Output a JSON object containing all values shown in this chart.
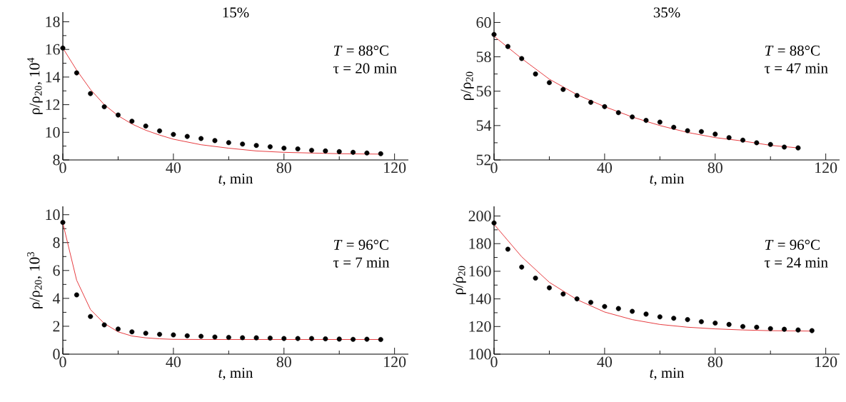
{
  "chart_data": [
    {
      "type": "scatter",
      "title": "15%",
      "xlabel": "*t*, min",
      "ylabel": "ρ/ρ$_{20}$, 10$^{4}$",
      "xlim": [
        0,
        125
      ],
      "ylim": [
        8,
        18.7
      ],
      "xticks": [
        0,
        40,
        80,
        120
      ],
      "yticks": [
        8,
        10,
        12,
        14,
        16,
        18
      ],
      "annotations": [
        "*T* = 88°C",
        "τ = 20 min"
      ],
      "series": [
        {
          "type": "scatter",
          "marker": "circle",
          "color": "#000000",
          "x": [
            0,
            5,
            10,
            15,
            20,
            25,
            30,
            35,
            40,
            45,
            50,
            55,
            60,
            65,
            70,
            75,
            80,
            85,
            90,
            95,
            100,
            105,
            110,
            115
          ],
          "values": [
            16.1,
            14.3,
            12.8,
            11.85,
            11.25,
            10.8,
            10.45,
            10.1,
            9.85,
            9.7,
            9.55,
            9.4,
            9.25,
            9.15,
            9.05,
            8.95,
            8.85,
            8.8,
            8.7,
            8.65,
            8.6,
            8.55,
            8.5,
            8.45
          ]
        },
        {
          "type": "line",
          "color": "#e3262a",
          "x": [
            0,
            5,
            10,
            15,
            20,
            25,
            30,
            35,
            40,
            50,
            60,
            70,
            80,
            90,
            100,
            115
          ],
          "values": [
            16.1,
            14.5,
            13.1,
            12.0,
            11.2,
            10.6,
            10.15,
            9.8,
            9.5,
            9.1,
            8.85,
            8.65,
            8.55,
            8.5,
            8.45,
            8.42
          ]
        }
      ]
    },
    {
      "type": "scatter",
      "title": "35%",
      "xlabel": "*t*, min",
      "ylabel": "ρ/ρ$_{20}$",
      "xlim": [
        0,
        125
      ],
      "ylim": [
        52,
        60.6
      ],
      "xticks": [
        0,
        40,
        80,
        120
      ],
      "yticks": [
        52,
        54,
        56,
        58,
        60
      ],
      "annotations": [
        "*T* = 88°C",
        "τ = 47 min"
      ],
      "series": [
        {
          "type": "scatter",
          "marker": "circle",
          "color": "#000000",
          "x": [
            0,
            5,
            10,
            15,
            20,
            25,
            30,
            35,
            40,
            45,
            50,
            55,
            60,
            65,
            70,
            75,
            80,
            85,
            90,
            95,
            100,
            105,
            110
          ],
          "values": [
            59.3,
            58.6,
            57.9,
            57.0,
            56.5,
            56.1,
            55.75,
            55.35,
            55.1,
            54.75,
            54.5,
            54.3,
            54.2,
            53.9,
            53.7,
            53.65,
            53.5,
            53.3,
            53.15,
            53.0,
            52.9,
            52.75,
            52.7
          ]
        },
        {
          "type": "line",
          "color": "#e3262a",
          "x": [
            0,
            10,
            20,
            30,
            40,
            50,
            60,
            70,
            80,
            90,
            100,
            110
          ],
          "values": [
            59.2,
            57.9,
            56.7,
            55.8,
            55.1,
            54.5,
            54.0,
            53.6,
            53.3,
            53.1,
            52.85,
            52.7
          ]
        }
      ]
    },
    {
      "type": "scatter",
      "xlabel": "*t*, min",
      "ylabel": "ρ/ρ$_{20}$, 10$^{3}$",
      "xlim": [
        0,
        125
      ],
      "ylim": [
        0,
        10.6
      ],
      "xticks": [
        0,
        40,
        80,
        120
      ],
      "yticks": [
        0,
        2,
        4,
        6,
        8,
        10
      ],
      "annotations": [
        "*T* = 96°C",
        "τ = 7 min"
      ],
      "series": [
        {
          "type": "scatter",
          "marker": "circle",
          "color": "#000000",
          "x": [
            0,
            5,
            10,
            15,
            20,
            25,
            30,
            35,
            40,
            45,
            50,
            55,
            60,
            65,
            70,
            75,
            80,
            85,
            90,
            95,
            100,
            105,
            110,
            115
          ],
          "values": [
            9.45,
            4.25,
            2.7,
            2.1,
            1.8,
            1.6,
            1.5,
            1.42,
            1.38,
            1.32,
            1.28,
            1.23,
            1.2,
            1.18,
            1.17,
            1.15,
            1.12,
            1.12,
            1.12,
            1.1,
            1.08,
            1.06,
            1.07,
            1.05
          ]
        },
        {
          "type": "line",
          "color": "#e3262a",
          "x": [
            0,
            5,
            10,
            15,
            20,
            25,
            30,
            35,
            40,
            50,
            60,
            115
          ],
          "values": [
            9.4,
            5.3,
            3.2,
            2.2,
            1.6,
            1.3,
            1.17,
            1.1,
            1.06,
            1.05,
            1.05,
            1.05
          ]
        }
      ]
    },
    {
      "type": "scatter",
      "xlabel": "*t*, min",
      "ylabel": "ρ/ρ$_{20}$",
      "xlim": [
        0,
        125
      ],
      "ylim": [
        100,
        207
      ],
      "xticks": [
        0,
        40,
        80,
        120
      ],
      "yticks": [
        100,
        120,
        140,
        160,
        180,
        200
      ],
      "annotations": [
        "*T* = 96°C",
        "τ = 24 min"
      ],
      "series": [
        {
          "type": "scatter",
          "marker": "circle",
          "color": "#000000",
          "x": [
            0,
            5,
            10,
            15,
            20,
            25,
            30,
            35,
            40,
            45,
            50,
            55,
            60,
            65,
            70,
            75,
            80,
            85,
            90,
            95,
            100,
            105,
            110,
            115
          ],
          "values": [
            195,
            176,
            163,
            155,
            148,
            143.5,
            140,
            137.5,
            134.5,
            133,
            131,
            129,
            127,
            126,
            125,
            123.5,
            122.5,
            121.5,
            120,
            119.5,
            118.5,
            118,
            117.5,
            117
          ]
        },
        {
          "type": "line",
          "color": "#e3262a",
          "x": [
            0,
            10,
            20,
            30,
            40,
            50,
            60,
            70,
            80,
            90,
            100,
            115
          ],
          "values": [
            194,
            170.5,
            152,
            139.5,
            130.5,
            125,
            121.5,
            119.5,
            118.3,
            117.5,
            117,
            116.7
          ]
        }
      ]
    }
  ]
}
